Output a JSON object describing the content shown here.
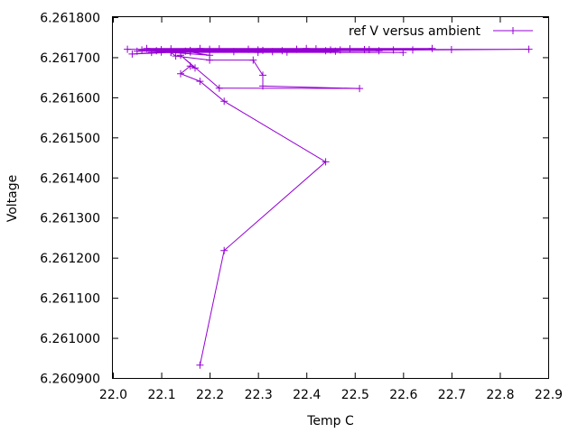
{
  "chart_data": {
    "type": "line",
    "title": "",
    "xlabel": "Temp C",
    "ylabel": "Voltage",
    "xlim": [
      22.0,
      22.9
    ],
    "ylim": [
      6.2609,
      6.2618
    ],
    "xticks": [
      "22.0",
      "22.1",
      "22.2",
      "22.3",
      "22.4",
      "22.5",
      "22.6",
      "22.7",
      "22.8",
      "22.9"
    ],
    "yticks": [
      "6.260900",
      "6.261000",
      "6.261100",
      "6.261200",
      "6.261300",
      "6.261400",
      "6.261500",
      "6.261600",
      "6.261700",
      "6.261800"
    ],
    "grid": false,
    "legend_position": "top-right",
    "series": [
      {
        "name": "ref V versus ambient",
        "color": "#9400d3",
        "marker": "plus",
        "x": [
          22.18,
          22.23,
          22.44,
          22.23,
          22.18,
          22.14,
          22.16,
          22.17,
          22.14,
          22.22,
          22.51,
          22.31,
          22.31,
          22.29,
          22.2,
          22.13,
          22.12,
          22.2,
          22.15,
          22.3,
          22.46,
          22.38,
          22.1,
          22.04,
          22.12,
          22.6,
          22.2,
          22.86,
          22.3,
          22.03,
          22.45,
          22.07,
          22.66,
          22.16,
          22.52,
          22.25,
          22.7,
          22.09,
          22.42,
          22.06,
          22.55,
          22.2,
          22.36,
          22.1,
          22.49,
          22.31,
          22.62,
          22.05,
          22.4,
          22.16,
          22.28,
          22.58,
          22.12,
          22.35,
          22.47,
          22.22,
          22.08,
          22.53,
          22.33,
          22.18,
          22.44
        ],
        "y": [
          6.260932,
          6.261218,
          6.261439,
          6.26159,
          6.26164,
          6.261659,
          6.261678,
          6.261673,
          6.261705,
          6.261623,
          6.261622,
          6.261628,
          6.261655,
          6.261693,
          6.261693,
          6.261703,
          6.261712,
          6.261705,
          6.261715,
          6.261712,
          6.261715,
          6.26172,
          6.261713,
          6.261708,
          6.261712,
          6.261712,
          6.261715,
          6.26172,
          6.261718,
          6.26172,
          6.261718,
          6.261722,
          6.261722,
          6.261717,
          6.261719,
          6.261714,
          6.261719,
          6.261716,
          6.261721,
          6.261718,
          6.261716,
          6.26172,
          6.261713,
          6.261719,
          6.261721,
          6.261717,
          6.261718,
          6.261715,
          6.261722,
          6.261713,
          6.26172,
          6.261718,
          6.261721,
          6.261716,
          6.261718,
          6.261721,
          6.261712,
          6.261719,
          6.261714,
          6.261722,
          6.261716
        ]
      }
    ]
  }
}
